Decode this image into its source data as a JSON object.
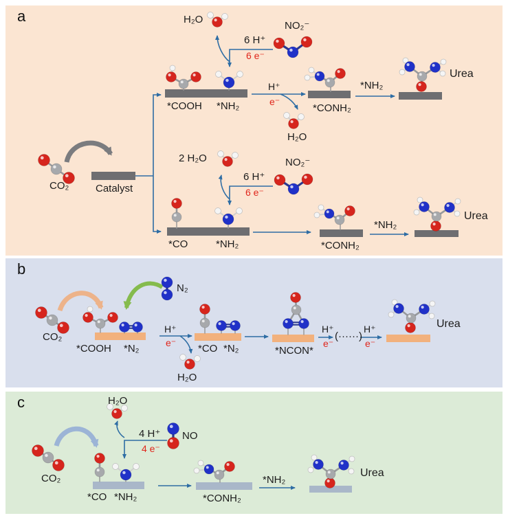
{
  "figure": {
    "panel_a": {
      "label": "a",
      "h2o_top": "H₂O",
      "six_h_top": "6 H⁺",
      "six_e_top": "6 e⁻",
      "no2_top": "NO₂⁻",
      "cooh": "*COOH",
      "nh2_site": "*NH₂",
      "h_plus": "H⁺",
      "e_minus": "e⁻",
      "h2o_mid": "H₂O",
      "conh2": "*CONH₂",
      "nh2_transfer": "*NH₂",
      "urea_top": "Urea",
      "co2": "CO₂",
      "catalyst": "Catalyst",
      "two_h2o": "2 H₂O",
      "six_h_bot": "6 H⁺",
      "six_e_bot": "6 e⁻",
      "no2_bot": "NO₂⁻",
      "co_site": "*CO",
      "nh2_site_bot": "*NH₂",
      "conh2_bot": "*CONH₂",
      "nh2_transfer_bot": "*NH₂",
      "urea_bot": "Urea"
    },
    "panel_b": {
      "label": "b",
      "n2_free": "N₂",
      "co2": "CO₂",
      "cooh": "*COOH",
      "n2_site": "*N₂",
      "h_plus_1": "H⁺",
      "e_minus_1": "e⁻",
      "h2o": "H₂O",
      "co_site": "*CO",
      "n2_site_2": "*N₂",
      "ncon": "*NCON*",
      "h_plus_2": "H⁺",
      "e_minus_2": "e⁻",
      "dots": "(······)",
      "h_plus_3": "H⁺",
      "e_minus_3": "e⁻",
      "urea": "Urea"
    },
    "panel_c": {
      "label": "c",
      "h2o": "H₂O",
      "four_h": "4 H⁺",
      "four_e": "4 e⁻",
      "no": "NO",
      "co2": "CO₂",
      "co_site": "*CO",
      "nh2_site": "*NH₂",
      "conh2": "*CONH₂",
      "nh2_transfer": "*NH₂",
      "urea": "Urea"
    },
    "colors": {
      "panel_a_bg": "#fbe5d2",
      "panel_b_bg": "#d9dfed",
      "panel_c_bg": "#dcebd7",
      "surface_dark": "#6e6e71",
      "surface_orange": "#f2b17d",
      "surface_steel": "#a9b7c9",
      "arrow_blue": "#2e6da4",
      "arrow_gray": "#7b7c7f",
      "arrow_orange": "#edb38a",
      "arrow_green": "#85bb4d",
      "arrow_steel": "#9cb4d6",
      "text_red": "#e0261c",
      "oxygen": "#d6251d",
      "nitrogen": "#2031c8",
      "carbon": "#a7a9ac",
      "hydrogen": "#f5f5f5"
    }
  }
}
